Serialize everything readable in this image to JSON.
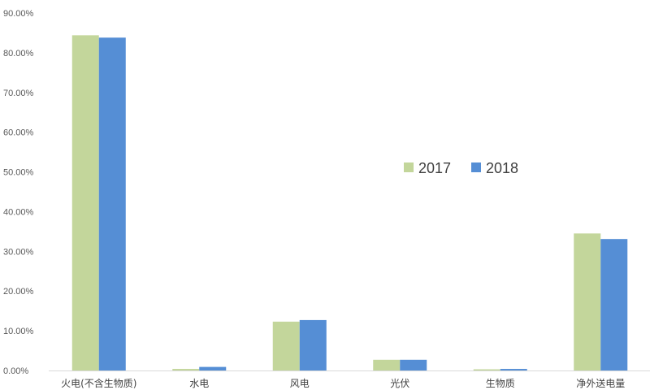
{
  "chart_data": {
    "type": "bar",
    "title": "",
    "xlabel": "",
    "ylabel": "",
    "categories": [
      "火电(不含生物质)",
      "水电",
      "风电",
      "光伏",
      "生物质",
      "净外送电量"
    ],
    "series": [
      {
        "name": "2017",
        "color": "#c3d69b",
        "values": [
          84.4,
          0.4,
          12.3,
          2.7,
          0.3,
          34.5
        ]
      },
      {
        "name": "2018",
        "color": "#558ed5",
        "values": [
          83.8,
          0.9,
          12.7,
          2.7,
          0.4,
          33.1
        ]
      }
    ],
    "ylim": [
      0,
      90
    ],
    "yticks": [
      "0.00%",
      "10.00%",
      "20.00%",
      "30.00%",
      "40.00%",
      "50.00%",
      "60.00%",
      "70.00%",
      "80.00%",
      "90.00%"
    ],
    "grid": false,
    "legend_position": "center-right"
  }
}
